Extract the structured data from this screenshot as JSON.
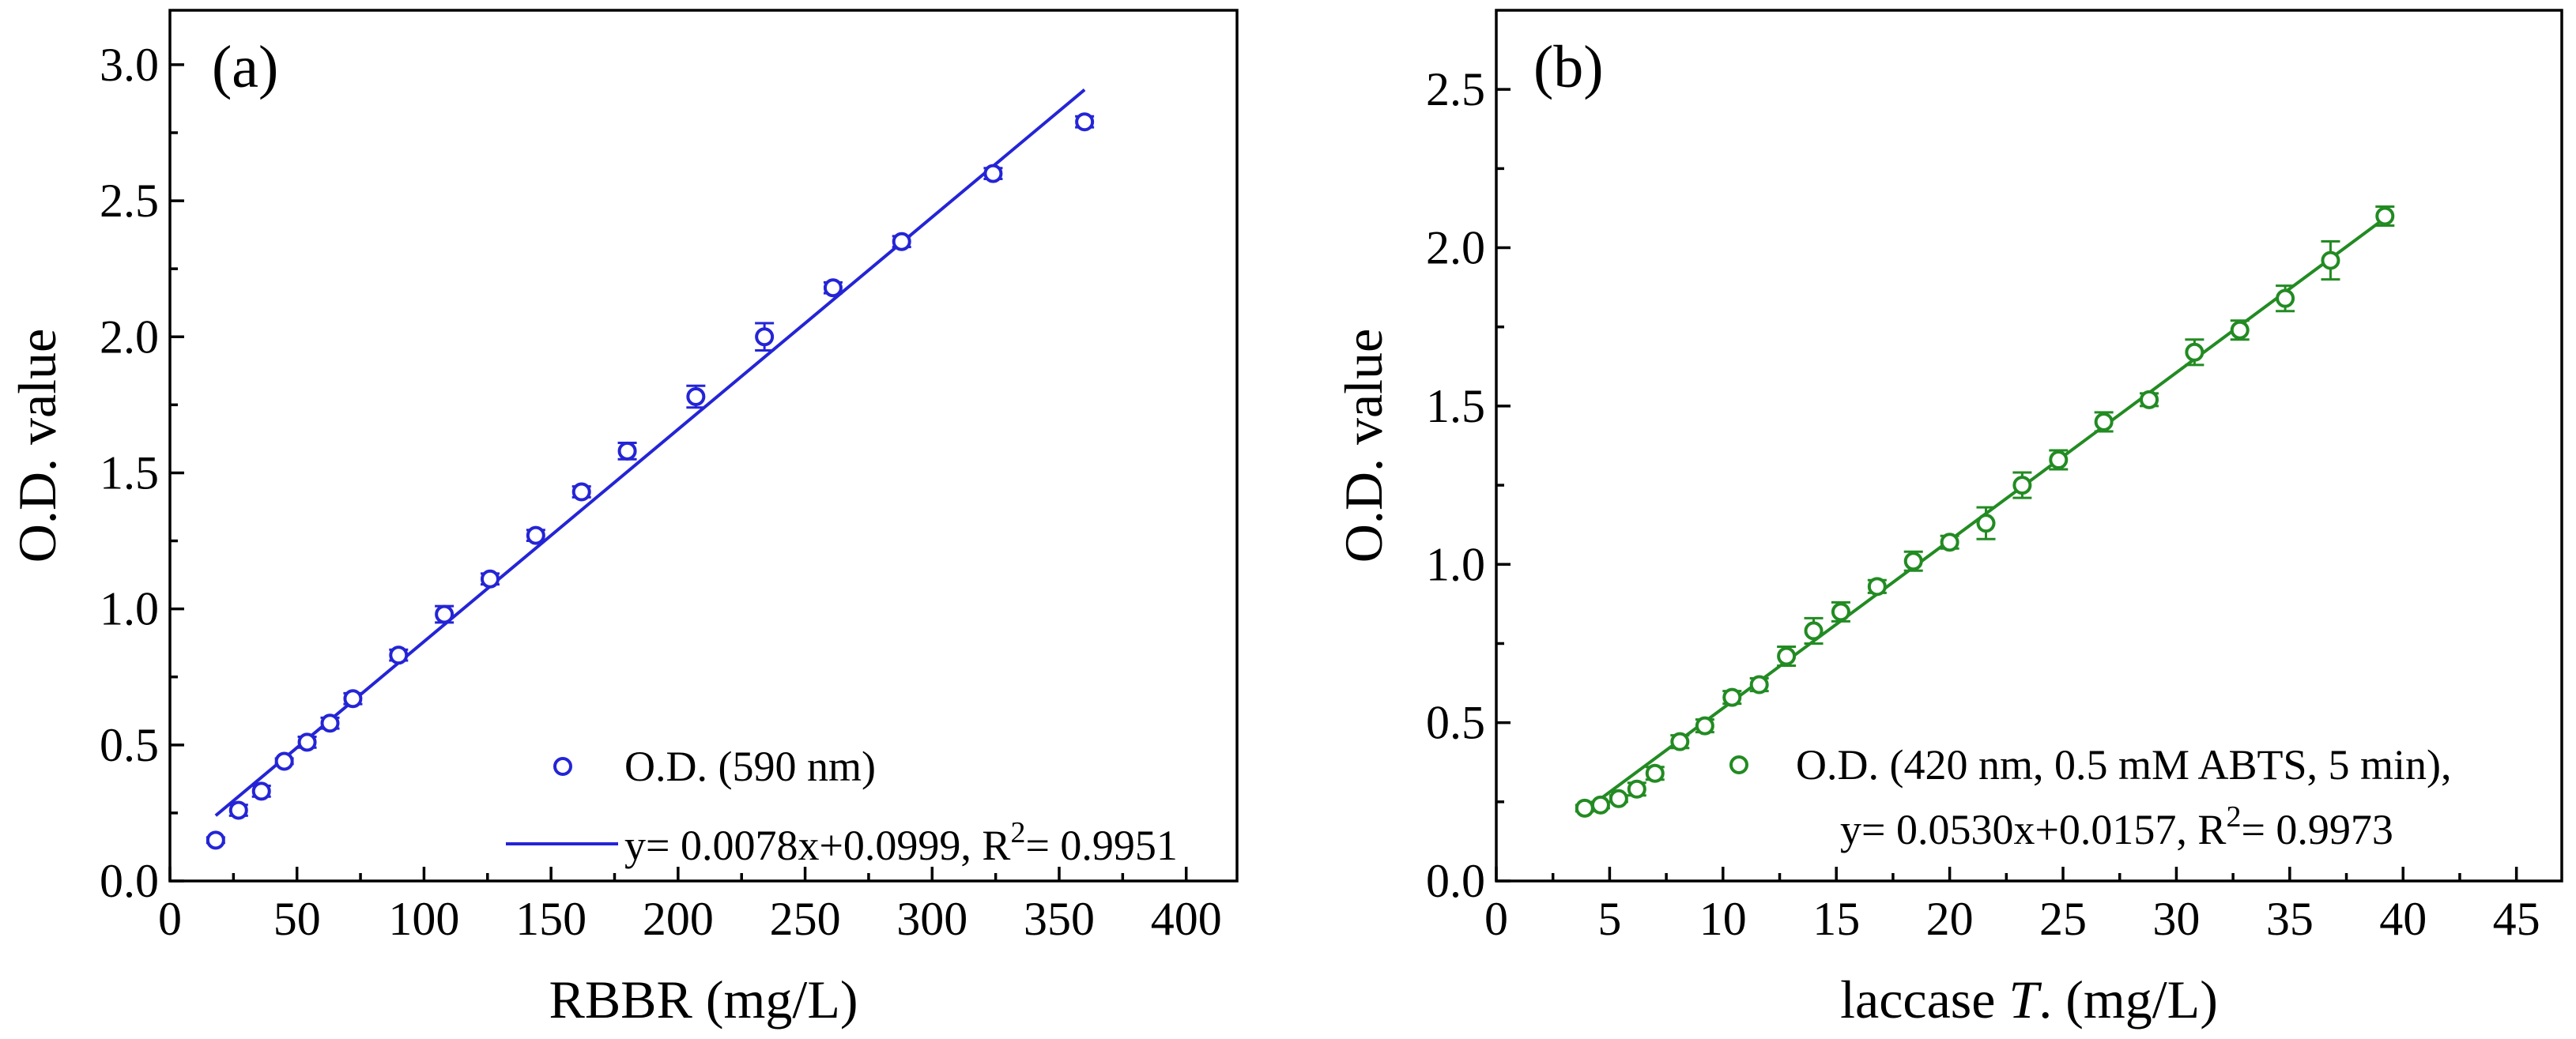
{
  "chart_data": [
    {
      "type": "scatter",
      "panel_label": "(a)",
      "xlabel": "RBBR (mg/L)",
      "ylabel": "O.D. value",
      "xlim": [
        0,
        420
      ],
      "ylim": [
        0,
        3.2
      ],
      "xticks": [
        0,
        50,
        100,
        150,
        200,
        250,
        300,
        350,
        400
      ],
      "yticks": [
        0.0,
        0.5,
        1.0,
        1.5,
        2.0,
        2.5,
        3.0
      ],
      "xtick_labels": [
        "0",
        "50",
        "100",
        "150",
        "200",
        "250",
        "300",
        "350",
        "400"
      ],
      "ytick_labels": [
        "0.0",
        "0.5",
        "1.0",
        "1.5",
        "2.0",
        "2.5",
        "3.0"
      ],
      "color": "#2424d6",
      "series": [
        {
          "name": "O.D. (590 nm)",
          "x": [
            18,
            27,
            36,
            45,
            54,
            63,
            72,
            90,
            108,
            126,
            144,
            162,
            180,
            207,
            234,
            261,
            288,
            324,
            360
          ],
          "y": [
            0.15,
            0.26,
            0.33,
            0.44,
            0.51,
            0.58,
            0.67,
            0.83,
            0.98,
            1.11,
            1.27,
            1.43,
            1.58,
            1.78,
            2.0,
            2.18,
            2.35,
            2.6,
            2.79
          ],
          "err": [
            0.01,
            0.02,
            0.02,
            0.01,
            0.02,
            0.02,
            0.02,
            0.02,
            0.03,
            0.02,
            0.02,
            0.02,
            0.03,
            0.04,
            0.05,
            0.02,
            0.02,
            0.02,
            0.02
          ]
        }
      ],
      "fit": {
        "name": "y= 0.0078x+0.0999, R2= 0.9951",
        "slope": 0.0078,
        "intercept": 0.0999,
        "x_range": [
          18,
          360
        ]
      },
      "legend": {
        "placement": "bottom-right",
        "point_label": "O.D. (590 nm)",
        "line_label": "y= 0.0078x+0.0999, R",
        "line_label_sup": "2",
        "line_label_tail": "= 0.9951"
      }
    },
    {
      "type": "scatter",
      "panel_label": "(b)",
      "xlabel_prefix": "laccase ",
      "xlabel_italic": "T",
      "xlabel_suffix": ". (mg/L)",
      "ylabel": "O.D. value",
      "xlim": [
        0,
        47
      ],
      "ylim": [
        0,
        2.75
      ],
      "xticks": [
        0,
        5,
        10,
        15,
        20,
        25,
        30,
        35,
        40,
        45
      ],
      "yticks": [
        0.0,
        0.5,
        1.0,
        1.5,
        2.0,
        2.5
      ],
      "xtick_labels": [
        "0",
        "5",
        "10",
        "15",
        "20",
        "25",
        "30",
        "35",
        "40",
        "45"
      ],
      "ytick_labels": [
        "0.0",
        "0.5",
        "1.0",
        "1.5",
        "2.0",
        "2.5"
      ],
      "color": "#228b22",
      "series": [
        {
          "name": "O.D. (420 nm, 0.5 mM ABTS, 5 min),",
          "x": [
            3.9,
            4.6,
            5.4,
            6.2,
            7.0,
            8.1,
            9.2,
            10.4,
            11.6,
            12.8,
            14.0,
            15.2,
            16.8,
            18.4,
            20.0,
            21.6,
            23.2,
            24.8,
            26.8,
            28.8,
            30.8,
            32.8,
            34.8,
            36.8,
            39.2
          ],
          "y": [
            0.23,
            0.24,
            0.26,
            0.29,
            0.34,
            0.44,
            0.49,
            0.58,
            0.62,
            0.71,
            0.79,
            0.85,
            0.93,
            1.01,
            1.07,
            1.13,
            1.25,
            1.33,
            1.45,
            1.52,
            1.67,
            1.74,
            1.84,
            1.96,
            2.1
          ],
          "err": [
            0.01,
            0.01,
            0.01,
            0.02,
            0.02,
            0.02,
            0.02,
            0.02,
            0.02,
            0.03,
            0.04,
            0.03,
            0.02,
            0.03,
            0.02,
            0.05,
            0.04,
            0.03,
            0.03,
            0.02,
            0.04,
            0.03,
            0.04,
            0.06,
            0.03
          ]
        }
      ],
      "fit": {
        "name": "y= 0.0530x+0.0157, R2= 0.9973",
        "slope": 0.053,
        "intercept": 0.0157,
        "x_range": [
          4,
          39.3
        ]
      },
      "legend": {
        "placement": "bottom-right",
        "point_label": "O.D. (420 nm, 0.5 mM ABTS, 5 min),",
        "line_label": "y= 0.0530x+0.0157, R",
        "line_label_sup": "2",
        "line_label_tail": "= 0.9973"
      }
    }
  ]
}
